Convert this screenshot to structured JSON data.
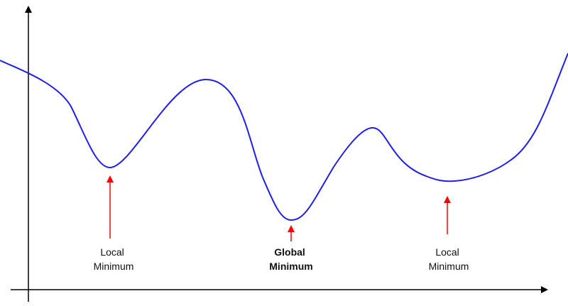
{
  "annotations": [
    [
      "Local",
      "Minimum"
    ],
    [
      "Global",
      "Minimum"
    ],
    [
      "Local",
      "Minimum"
    ]
  ]
}
